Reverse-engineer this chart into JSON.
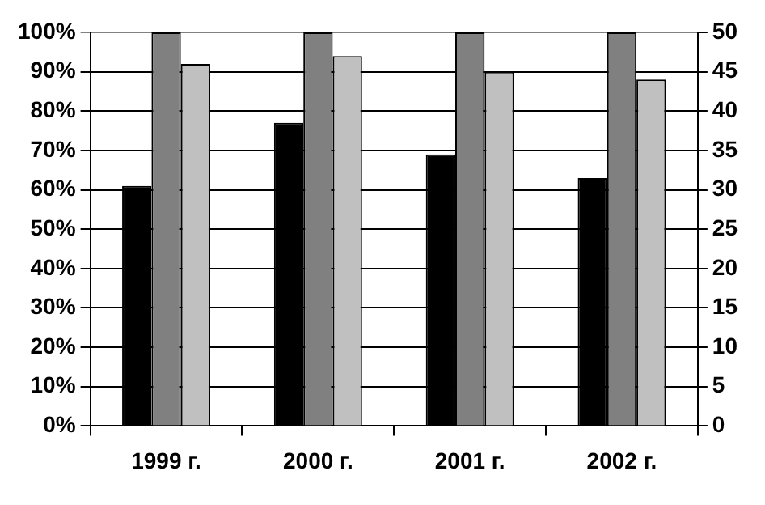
{
  "chart_data": {
    "type": "bar",
    "categories": [
      "1999 г.",
      "2000 г.",
      "2001 г.",
      "2002 г."
    ],
    "series": [
      {
        "color": "#000000",
        "values": [
          61,
          77,
          69,
          63
        ]
      },
      {
        "color": "#808080",
        "axis": "y2",
        "values": [
          50,
          50,
          50,
          50
        ]
      },
      {
        "color": "#c0c0c0",
        "axis": "y2",
        "values": [
          46,
          47,
          45,
          44
        ]
      }
    ],
    "ylim": [
      0,
      100
    ],
    "yticks": [
      {
        "value": 0,
        "label": "0%"
      },
      {
        "value": 10,
        "label": "10%"
      },
      {
        "value": 20,
        "label": "20%"
      },
      {
        "value": 30,
        "label": "30%"
      },
      {
        "value": 40,
        "label": "40%"
      },
      {
        "value": 50,
        "label": "50%"
      },
      {
        "value": 60,
        "label": "60%"
      },
      {
        "value": 70,
        "label": "70%"
      },
      {
        "value": 80,
        "label": "80%"
      },
      {
        "value": 90,
        "label": "90%"
      },
      {
        "value": 100,
        "label": "100%"
      }
    ],
    "y2lim": [
      0,
      50
    ],
    "y2ticks": [
      0,
      5,
      10,
      15,
      20,
      25,
      30,
      35,
      40,
      45,
      50
    ],
    "grid": "y",
    "legend": false
  }
}
